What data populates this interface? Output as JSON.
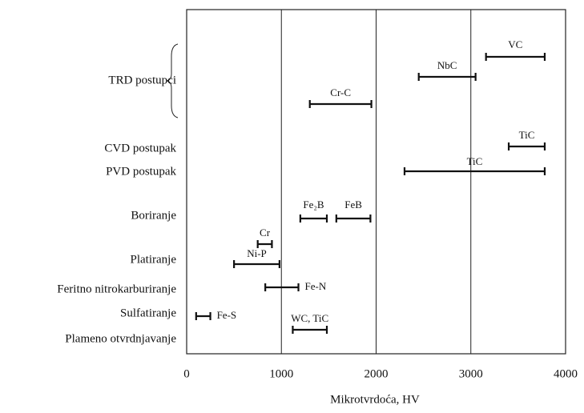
{
  "chart_data": {
    "type": "range",
    "xlabel": "Mikrotvrdoća, HV",
    "xlim": [
      0,
      4000
    ],
    "xticks": [
      0,
      1000,
      2000,
      3000,
      4000
    ],
    "grid": true,
    "categories": [
      "TRD postupci",
      "CVD postupak",
      "PVD postupak",
      "Boriranje",
      "Platiranje",
      "Feritno nitrokarburiranje",
      "Sulfatiranje",
      "Plameno otvrdnjavanje"
    ],
    "bars": [
      {
        "label": "VC",
        "start": 3160,
        "end": 3780
      },
      {
        "label": "NbC",
        "start": 2450,
        "end": 3050
      },
      {
        "label": "Cr-C",
        "start": 1300,
        "end": 1950
      },
      {
        "label": "TiC",
        "start": 3400,
        "end": 3780
      },
      {
        "label": "TiC",
        "start": 2300,
        "end": 3780
      },
      {
        "label": "Fe₂B",
        "start": 1200,
        "end": 1480
      },
      {
        "label": "FeB",
        "start": 1580,
        "end": 1940
      },
      {
        "label": "Cr",
        "start": 750,
        "end": 900
      },
      {
        "label": "Ni-P",
        "start": 500,
        "end": 980
      },
      {
        "label": "Fe-N",
        "start": 830,
        "end": 1180
      },
      {
        "label": "Fe-S",
        "start": 100,
        "end": 250
      },
      {
        "label": "WC, TiC",
        "start": 1120,
        "end": 1480
      }
    ],
    "color": "#111111"
  }
}
